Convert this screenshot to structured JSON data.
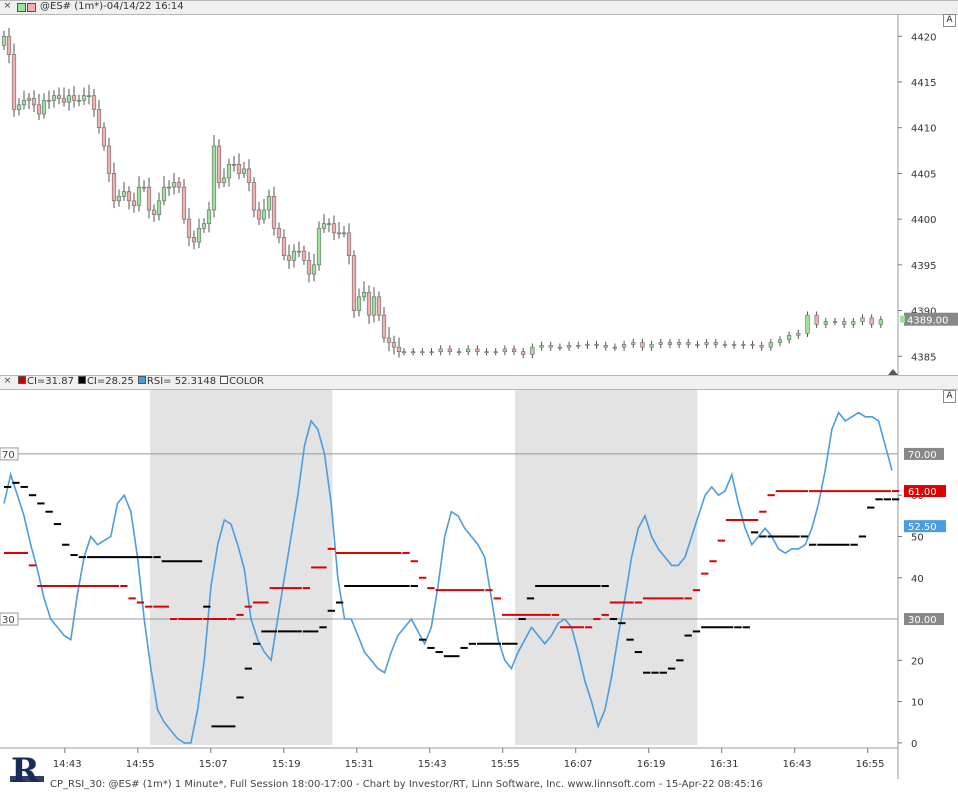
{
  "window": {
    "price_pane_title": "@ES# (1m*)-04/14/22 16:14",
    "rsi_pane_title_parts": [
      {
        "color": "#cc0000",
        "text": "CI=31.87"
      },
      {
        "color": "#000000",
        "text": "CI=28.25"
      },
      {
        "color": "#4a9de0",
        "text": "RSI= 52.3148"
      },
      {
        "color": "#ffffff",
        "text": "COLOR"
      }
    ],
    "autoscale_label": "A",
    "close_glyph": "×",
    "footer": "CP_RSI_30: @ES# (1m*) 1 Minute*, Full Session 18:00-17:00 - Chart by Investor/RT, Linn Software, Inc. www.linnsoft.com - 15-Apr-22 08:45:16"
  },
  "colors": {
    "up_candle": "#9be39b",
    "down_candle": "#f0b0b0",
    "rsi_line": "#4a9de0",
    "ci_red": "#dd0000",
    "ci_black": "#000000",
    "shade": "#e3e3e3"
  },
  "chart_data": [
    {
      "type": "candlestick",
      "title": "@ES# (1m*)-04/14/22 16:14",
      "ylim": [
        4383.5,
        4422
      ],
      "y_ticks": [
        "4420",
        "4415",
        "4410",
        "4405",
        "4400",
        "4395",
        "4390",
        "4385"
      ],
      "last_price": "4389.00",
      "segments": [
        {
          "start": 4419,
          "closes": [
            4420,
            4418,
            4412,
            4412.5,
            4413,
            4413.2,
            4412.5,
            4411.5,
            4413,
            4413,
            4413.5,
            4413.2,
            4412.8,
            4413.5,
            4413,
            4413,
            4413.5,
            4413.5,
            4412,
            4410,
            4408,
            4405,
            4402,
            4402.5,
            4403,
            4402,
            4401.5,
            4403.5,
            4403.5,
            4401,
            4400.5,
            4402,
            4403.5,
            4403.5,
            4404,
            4403.5,
            4400,
            4398,
            4397.5,
            4399,
            4399.5,
            4401,
            4408,
            4404,
            4404.5,
            4406,
            4406,
            4405,
            4405.5,
            4404,
            4401,
            4400,
            4401,
            4402.5,
            4399,
            4398,
            4396,
            4395.5,
            4396.5,
            4396.5,
            4395.5,
            4394,
            4395,
            4399,
            4399.5,
            4399.5,
            4398.5,
            4398.5,
            4398.5,
            4396,
            4390,
            4391.5,
            4392,
            4389.5,
            4391.5,
            4389.5,
            4387,
            4386.5,
            4386,
            4385.5
          ]
        },
        {
          "start": 4385.5,
          "closes": [
            4385.5,
            4385.5,
            4385.5,
            4385.5,
            4385.8,
            4385.5,
            4385.5,
            4385.8,
            4385.5,
            4385.5,
            4385.5,
            4385.8,
            4385.5,
            4385.2,
            4386,
            4386.2,
            4386,
            4386,
            4386.2,
            4386.2,
            4386.3,
            4386.2,
            4386,
            4386,
            4386.3,
            4386.5,
            4386,
            4386.3,
            4386.5,
            4386.3,
            4386.5,
            4386.3,
            4386.3,
            4386.5,
            4386.3,
            4386.3,
            4386.2,
            4386.3,
            4386.2,
            4386,
            4386.5,
            4386.8,
            4387.3,
            4387.5,
            4389.5,
            4388.5,
            4388.8,
            4388.8,
            4388.5,
            4388.8,
            4389.2,
            4388.5,
            4389
          ]
        }
      ]
    },
    {
      "type": "line",
      "title": "CI=31.87 CI=28.25 RSI= 52.3148 COLOR",
      "ylim": [
        -1,
        85
      ],
      "y_ticks": [
        "70",
        "60",
        "50",
        "40",
        "30",
        "20",
        "10",
        "0"
      ],
      "levels": [
        70,
        30
      ],
      "x_tick_labels": [
        "14:43",
        "14:55",
        "15:07",
        "15:19",
        "15:31",
        "15:43",
        "15:55",
        "16:07",
        "16:19",
        "16:31",
        "16:43",
        "16:55"
      ],
      "shaded_time_ranges": [
        [
          "14:57",
          "15:27"
        ],
        [
          "15:57",
          "16:27"
        ]
      ],
      "series": [
        {
          "name": "RSI",
          "last_value": "52.50",
          "values": [
            58,
            65,
            60,
            55,
            48,
            42,
            35,
            30,
            28,
            26,
            25,
            36,
            45,
            50,
            48,
            49,
            50,
            58,
            60,
            56,
            45,
            30,
            18,
            8,
            5,
            3,
            1,
            0,
            0,
            8,
            20,
            38,
            48,
            54,
            53,
            48,
            42,
            30,
            25,
            22,
            20,
            30,
            40,
            50,
            60,
            72,
            78,
            76,
            70,
            58,
            40,
            30,
            30,
            26,
            22,
            20,
            18,
            17,
            22,
            26,
            28,
            30,
            27,
            24,
            28,
            38,
            50,
            56,
            55,
            52,
            50,
            48,
            45,
            35,
            25,
            20,
            18,
            22,
            25,
            28,
            26,
            24,
            26,
            29,
            30,
            28,
            22,
            15,
            10,
            4,
            8,
            16,
            26,
            35,
            45,
            52,
            55,
            50,
            47,
            45,
            43,
            43,
            45,
            50,
            55,
            60,
            62,
            60,
            61,
            65,
            58,
            52,
            48,
            50,
            52,
            50,
            47,
            46,
            47,
            47,
            48,
            52,
            58,
            66,
            76,
            80,
            78,
            79,
            80,
            79,
            79,
            78,
            72,
            66
          ]
        },
        {
          "name": "CI (black)",
          "last_value": "",
          "steps": [
            [
              0,
              62
            ],
            [
              1,
              63
            ],
            [
              2,
              62
            ],
            [
              3,
              60
            ],
            [
              4,
              58
            ],
            [
              5,
              56
            ],
            [
              6,
              53
            ],
            [
              7,
              48
            ],
            [
              8,
              45.5
            ],
            [
              9,
              45
            ],
            [
              10,
              45
            ],
            [
              18,
              45
            ],
            [
              19,
              44
            ],
            [
              24,
              33
            ],
            [
              25,
              4
            ],
            [
              28,
              11
            ],
            [
              29,
              18
            ],
            [
              30,
              24
            ],
            [
              31,
              27
            ],
            [
              33,
              27
            ],
            [
              36,
              27
            ],
            [
              38,
              28
            ],
            [
              39,
              32
            ],
            [
              40,
              34
            ],
            [
              41,
              38
            ],
            [
              49,
              38
            ],
            [
              50,
              25
            ],
            [
              51,
              23
            ],
            [
              52,
              22
            ],
            [
              53,
              21
            ],
            [
              55,
              23
            ],
            [
              56,
              24
            ],
            [
              57,
              24
            ],
            [
              60,
              24
            ],
            [
              62,
              30
            ],
            [
              63,
              35
            ],
            [
              64,
              38
            ],
            [
              72,
              38
            ],
            [
              73,
              30
            ],
            [
              74,
              29
            ],
            [
              75,
              25
            ],
            [
              76,
              22
            ],
            [
              77,
              17
            ],
            [
              78,
              17
            ],
            [
              79,
              17
            ],
            [
              80,
              18
            ],
            [
              81,
              20
            ],
            [
              82,
              26
            ],
            [
              83,
              27
            ],
            [
              84,
              28
            ],
            [
              88,
              28
            ],
            [
              89,
              28
            ],
            [
              90,
              51
            ],
            [
              91,
              50
            ],
            [
              92,
              50
            ],
            [
              96,
              50
            ],
            [
              97,
              48
            ],
            [
              98,
              48
            ],
            [
              102,
              48
            ],
            [
              103,
              50
            ],
            [
              104,
              57
            ],
            [
              105,
              59
            ],
            [
              106,
              59
            ],
            [
              107,
              59
            ]
          ]
        },
        {
          "name": "CI (red)",
          "last_value": "61.00",
          "steps": [
            [
              0,
              46
            ],
            [
              3,
              43
            ],
            [
              4,
              38
            ],
            [
              14,
              38
            ],
            [
              15,
              35
            ],
            [
              16,
              34
            ],
            [
              17,
              33
            ],
            [
              18,
              33
            ],
            [
              20,
              30
            ],
            [
              21,
              30
            ],
            [
              24,
              30
            ],
            [
              27,
              30
            ],
            [
              28,
              31
            ],
            [
              29,
              33
            ],
            [
              30,
              34
            ],
            [
              32,
              37.5
            ],
            [
              36,
              37.5
            ],
            [
              37,
              42.5
            ],
            [
              39,
              47
            ],
            [
              40,
              46
            ],
            [
              48,
              46
            ],
            [
              49,
              44
            ],
            [
              50,
              40
            ],
            [
              51,
              37.5
            ],
            [
              52,
              37
            ],
            [
              58,
              37
            ],
            [
              59,
              35
            ],
            [
              60,
              31
            ],
            [
              66,
              31
            ],
            [
              67,
              28
            ],
            [
              70,
              28
            ],
            [
              71,
              30
            ],
            [
              72,
              31
            ],
            [
              73,
              34
            ],
            [
              76,
              34
            ],
            [
              77,
              35
            ],
            [
              82,
              35
            ],
            [
              83,
              37
            ],
            [
              84,
              41
            ],
            [
              85,
              44
            ],
            [
              86,
              49
            ],
            [
              87,
              54
            ],
            [
              91,
              56
            ],
            [
              92,
              60
            ],
            [
              93,
              61
            ],
            [
              97,
              61
            ],
            [
              107,
              61
            ]
          ]
        }
      ]
    }
  ]
}
